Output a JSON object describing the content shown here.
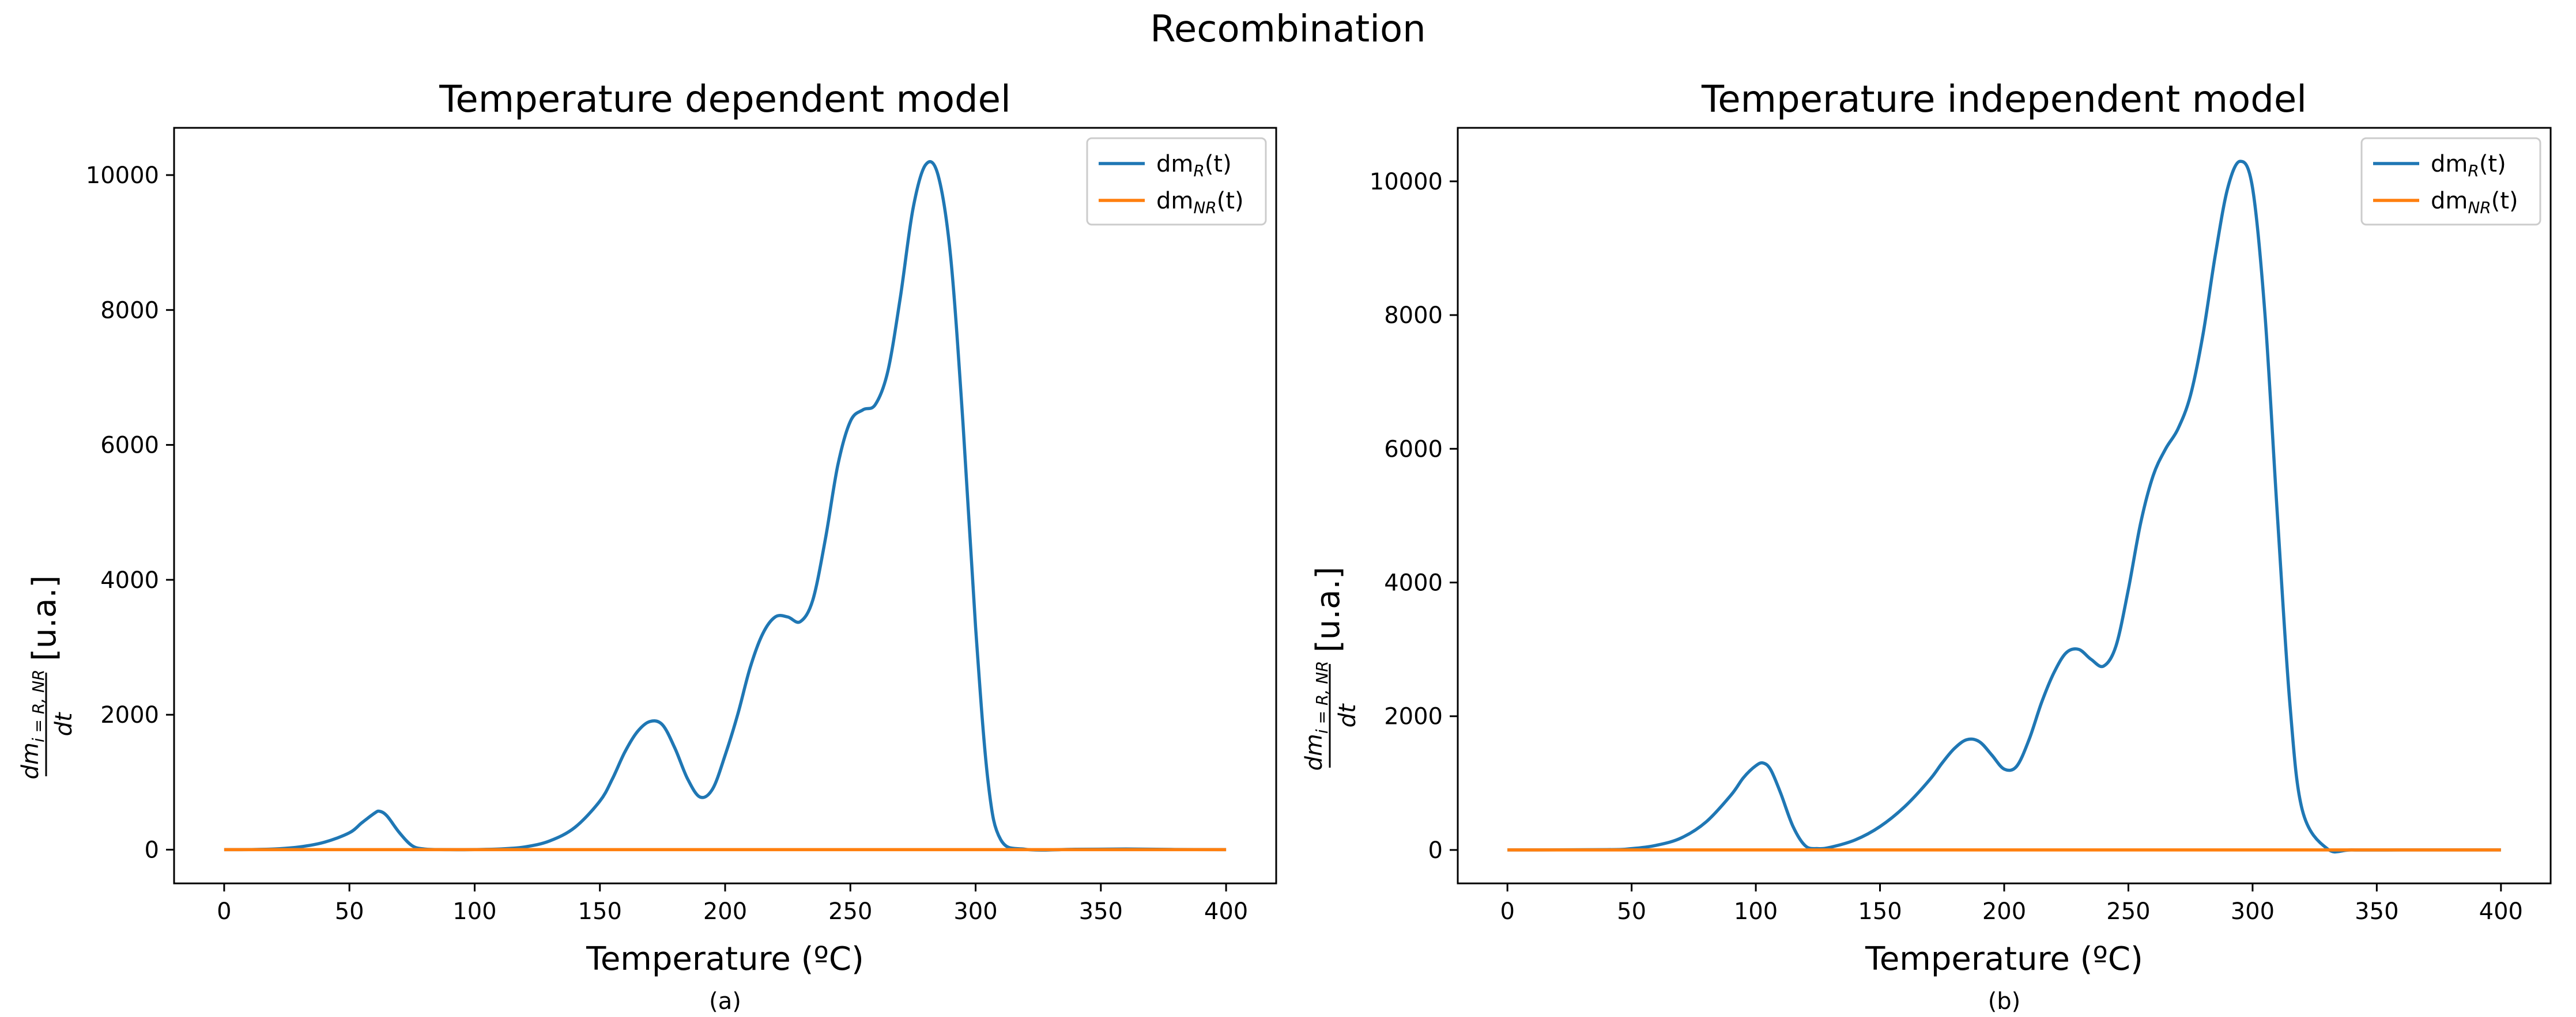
{
  "figure": {
    "suptitle": "Recombination"
  },
  "chart_data": [
    {
      "type": "line",
      "panel_label": "(a)",
      "title": "Temperature dependent model",
      "xlabel": "Temperature (ºC)",
      "ylabel_frac_num": "dm",
      "ylabel_frac_num_sub": "i = R, NR",
      "ylabel_frac_den": "dt",
      "ylabel_unit": "[u.a.]",
      "xlim": [
        -20,
        420
      ],
      "ylim": [
        -500,
        10700
      ],
      "xticks": [
        0,
        50,
        100,
        150,
        200,
        250,
        300,
        350,
        400
      ],
      "yticks": [
        0,
        2000,
        4000,
        6000,
        8000,
        10000
      ],
      "grid": false,
      "legend_placement": "top-right",
      "series": [
        {
          "name": "dm_R(t)",
          "legend_base": "dm",
          "legend_sub": "R",
          "legend_tail": "(t)",
          "color": "#1f77b4",
          "x": [
            0,
            10,
            20,
            30,
            40,
            50,
            55,
            60,
            62,
            65,
            70,
            75,
            80,
            90,
            100,
            110,
            120,
            130,
            140,
            150,
            155,
            160,
            165,
            170,
            175,
            180,
            185,
            190,
            195,
            200,
            205,
            210,
            215,
            220,
            225,
            230,
            235,
            240,
            245,
            250,
            255,
            260,
            265,
            270,
            275,
            280,
            285,
            290,
            295,
            300,
            305,
            310,
            320,
            340,
            360,
            380,
            400
          ],
          "y": [
            0,
            2,
            10,
            40,
            110,
            250,
            400,
            540,
            570,
            500,
            250,
            60,
            10,
            0,
            2,
            10,
            40,
            130,
            330,
            720,
            1050,
            1450,
            1750,
            1900,
            1850,
            1500,
            1050,
            780,
            900,
            1400,
            2000,
            2700,
            3200,
            3450,
            3450,
            3380,
            3700,
            4600,
            5700,
            6350,
            6520,
            6600,
            7100,
            8200,
            9500,
            10150,
            10000,
            8800,
            6300,
            3300,
            1000,
            150,
            5,
            5,
            10,
            3,
            0
          ]
        },
        {
          "name": "dm_NR(t)",
          "legend_base": "dm",
          "legend_sub": "NR",
          "legend_tail": "(t)",
          "color": "#ff7f0e",
          "x": [
            0,
            400
          ],
          "y": [
            0,
            0
          ]
        }
      ]
    },
    {
      "type": "line",
      "panel_label": "(b)",
      "title": "Temperature independent model",
      "xlabel": "Temperature (ºC)",
      "ylabel_frac_num": "dm",
      "ylabel_frac_num_sub": "i = R, NR",
      "ylabel_frac_den": "dt",
      "ylabel_unit": "[u.a.]",
      "xlim": [
        -20,
        420
      ],
      "ylim": [
        -500,
        10800
      ],
      "xticks": [
        0,
        50,
        100,
        150,
        200,
        250,
        300,
        350,
        400
      ],
      "yticks": [
        0,
        2000,
        4000,
        6000,
        8000,
        10000
      ],
      "grid": false,
      "legend_placement": "top-right",
      "series": [
        {
          "name": "dm_R(t)",
          "legend_base": "dm",
          "legend_sub": "R",
          "legend_tail": "(t)",
          "color": "#1f77b4",
          "x": [
            0,
            40,
            50,
            60,
            70,
            80,
            90,
            95,
            100,
            103,
            106,
            110,
            115,
            120,
            125,
            130,
            140,
            150,
            160,
            170,
            175,
            180,
            185,
            190,
            195,
            200,
            205,
            210,
            215,
            220,
            225,
            230,
            235,
            240,
            245,
            250,
            255,
            260,
            265,
            270,
            275,
            280,
            285,
            290,
            295,
            300,
            305,
            310,
            315,
            320,
            330,
            340,
            360,
            380,
            400
          ],
          "y": [
            0,
            5,
            20,
            70,
            180,
            420,
            820,
            1080,
            1260,
            1300,
            1200,
            850,
            350,
            60,
            20,
            40,
            150,
            350,
            650,
            1050,
            1300,
            1520,
            1650,
            1620,
            1420,
            1210,
            1250,
            1650,
            2200,
            2650,
            2950,
            3000,
            2850,
            2750,
            3050,
            3900,
            4900,
            5600,
            6000,
            6300,
            6800,
            7700,
            8900,
            9900,
            10300,
            9900,
            8000,
            5000,
            2200,
            600,
            20,
            0,
            0,
            0,
            0
          ]
        },
        {
          "name": "dm_NR(t)",
          "legend_base": "dm",
          "legend_sub": "NR",
          "legend_tail": "(t)",
          "color": "#ff7f0e",
          "x": [
            0,
            400
          ],
          "y": [
            0,
            0
          ]
        }
      ]
    }
  ]
}
